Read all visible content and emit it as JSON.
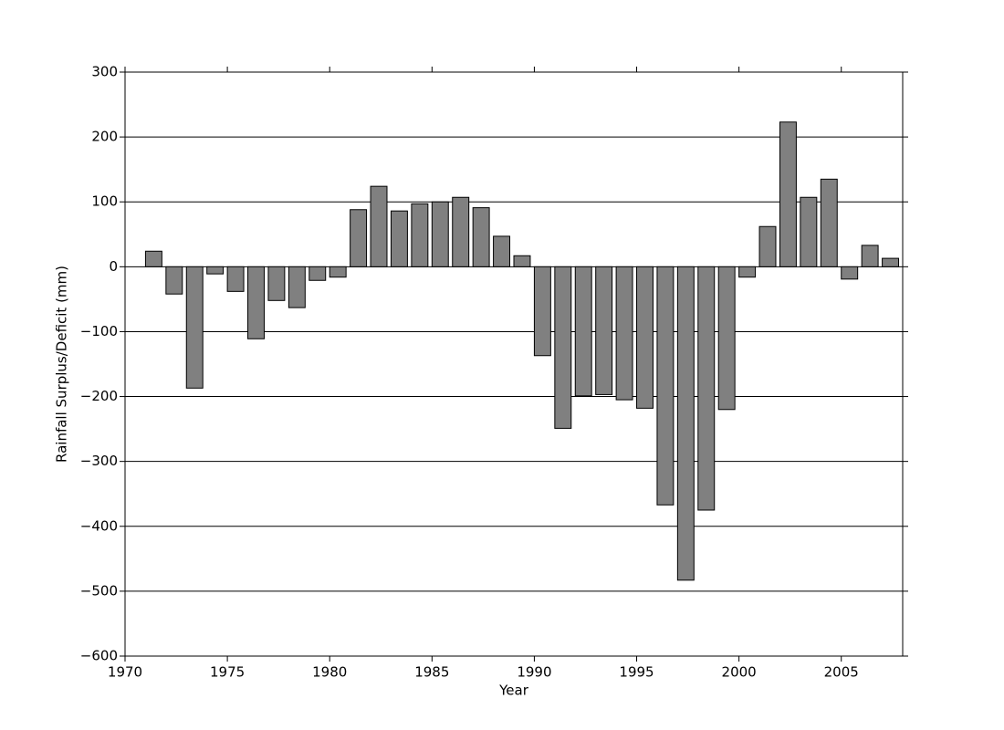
{
  "chart_data": {
    "type": "bar",
    "x_label": "Year",
    "y_label": "Rainfall Surplus/Deficit (mm)",
    "x": [
      1971,
      1972,
      1973,
      1974,
      1975,
      1976,
      1977,
      1978,
      1979,
      1980,
      1981,
      1982,
      1983,
      1984,
      1985,
      1986,
      1987,
      1988,
      1989,
      1990,
      1991,
      1992,
      1993,
      1994,
      1995,
      1996,
      1997,
      1998,
      1999,
      2000,
      2001,
      2002,
      2003,
      2004,
      2005,
      2006,
      2007
    ],
    "values": [
      24,
      -42,
      -187,
      -11,
      -38,
      -111,
      -52,
      -63,
      -21,
      -16,
      88,
      124,
      86,
      97,
      100,
      107,
      91,
      47,
      17,
      -137,
      -249,
      -199,
      -197,
      -205,
      -218,
      -367,
      -483,
      -375,
      -220,
      -16,
      62,
      223,
      107,
      135,
      -19,
      33,
      13
    ],
    "color": "#808080",
    "edge_color": "#000000",
    "xlim": [
      1970,
      2008
    ],
    "xticks": [
      1970,
      1975,
      1980,
      1985,
      1990,
      1995,
      2000,
      2005
    ],
    "ylim": [
      -600,
      300
    ],
    "yticks": [
      {
        "value": -600,
        "label": "−600"
      },
      {
        "value": -500,
        "label": "−500"
      },
      {
        "value": -400,
        "label": "−400"
      },
      {
        "value": -300,
        "label": "−300"
      },
      {
        "value": -200,
        "label": "−200"
      },
      {
        "value": -100,
        "label": "−100"
      },
      0,
      100,
      200,
      300
    ],
    "grid": true
  }
}
